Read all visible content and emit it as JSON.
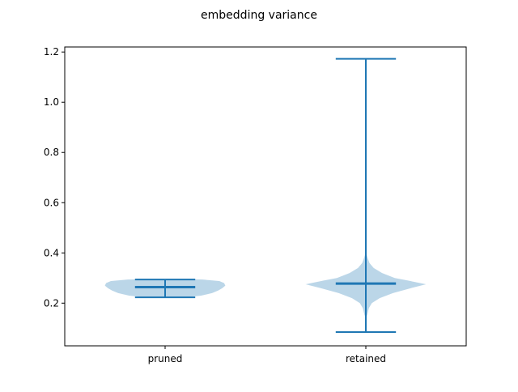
{
  "chart_data": {
    "type": "violin",
    "title": "embedding variance",
    "xlabel": "",
    "ylabel": "",
    "categories": [
      "pruned",
      "retained"
    ],
    "ylim": [
      0.03,
      1.22
    ],
    "yticks": [
      0.2,
      0.4,
      0.6,
      0.8,
      1.0,
      1.2
    ],
    "ytick_labels": [
      "0.2",
      "0.4",
      "0.6",
      "0.8",
      "1.0",
      "1.2"
    ],
    "grid": false,
    "violins": [
      {
        "category": "pruned",
        "min": 0.223,
        "max": 0.294,
        "median": 0.264,
        "density": [
          [
            0.222,
            0.3
          ],
          [
            0.23,
            0.6
          ],
          [
            0.24,
            0.78
          ],
          [
            0.25,
            0.88
          ],
          [
            0.26,
            0.95
          ],
          [
            0.27,
            1.0
          ],
          [
            0.28,
            0.98
          ],
          [
            0.288,
            0.9
          ],
          [
            0.294,
            0.62
          ],
          [
            0.296,
            0.3
          ]
        ]
      },
      {
        "category": "retained",
        "min": 0.085,
        "max": 1.173,
        "median": 0.278,
        "density": [
          [
            0.15,
            0.02
          ],
          [
            0.18,
            0.05
          ],
          [
            0.2,
            0.1
          ],
          [
            0.22,
            0.23
          ],
          [
            0.24,
            0.45
          ],
          [
            0.26,
            0.75
          ],
          [
            0.275,
            1.0
          ],
          [
            0.29,
            0.7
          ],
          [
            0.3,
            0.48
          ],
          [
            0.32,
            0.27
          ],
          [
            0.34,
            0.13
          ],
          [
            0.36,
            0.06
          ],
          [
            0.38,
            0.03
          ],
          [
            0.4,
            0.005
          ]
        ]
      }
    ],
    "colors": {
      "body": "#1f77b4",
      "body_alpha": 0.3,
      "lines": "#1f77b4"
    }
  }
}
